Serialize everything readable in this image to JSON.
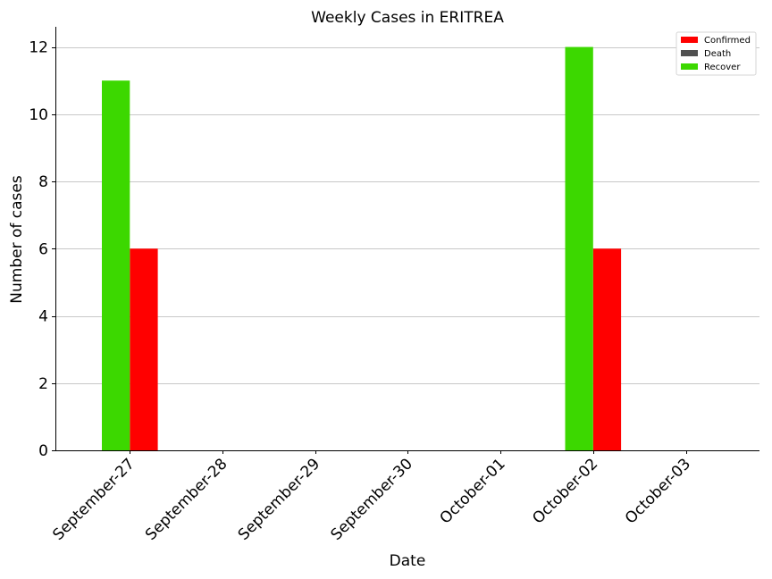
{
  "chart_data": {
    "type": "bar",
    "title": "Weekly Cases in ERITREA",
    "xlabel": "Date",
    "ylabel": "Number of cases",
    "categories": [
      "September-27",
      "September-28",
      "September-29",
      "September-30",
      "October-01",
      "October-02",
      "October-03"
    ],
    "series": [
      {
        "name": "Confirmed",
        "color": "#ff0000",
        "values": [
          6,
          0,
          0,
          0,
          0,
          6,
          0
        ]
      },
      {
        "name": "Death",
        "color": "#505050",
        "values": [
          0,
          0,
          0,
          0,
          0,
          0,
          0
        ]
      },
      {
        "name": "Recover",
        "color": "#3cd800",
        "values": [
          11,
          0,
          0,
          0,
          0,
          12,
          0
        ]
      }
    ],
    "ylim": [
      0,
      12.6
    ],
    "yticks": [
      0,
      2,
      4,
      6,
      8,
      10,
      12
    ],
    "grid": "horizontal",
    "legend": "top-right",
    "xtick_rotation": 45
  }
}
